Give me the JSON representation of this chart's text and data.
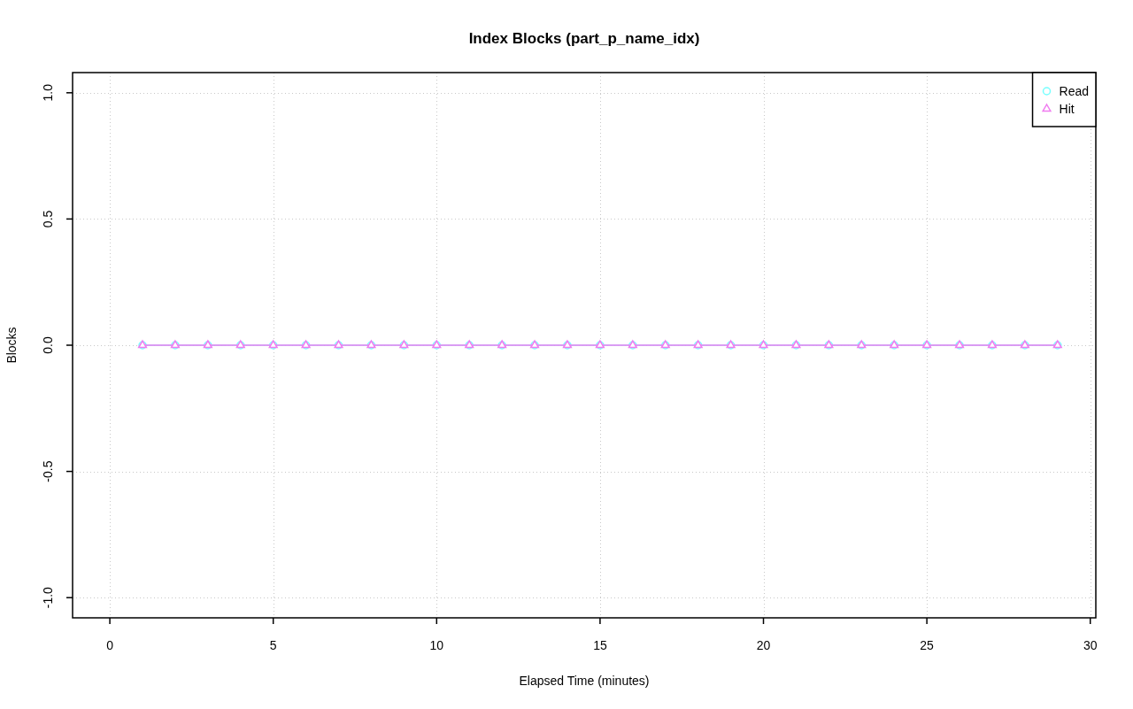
{
  "chart_data": {
    "type": "line",
    "title": "Index Blocks (part_p_name_idx)",
    "xlabel": "Elapsed Time (minutes)",
    "ylabel": "Blocks",
    "x": [
      1,
      2,
      3,
      4,
      5,
      6,
      7,
      8,
      9,
      10,
      11,
      12,
      13,
      14,
      15,
      16,
      17,
      18,
      19,
      20,
      21,
      22,
      23,
      24,
      25,
      26,
      27,
      28,
      29
    ],
    "series": [
      {
        "name": "Read",
        "color": "#77ffff",
        "marker": "circle",
        "values": [
          0,
          0,
          0,
          0,
          0,
          0,
          0,
          0,
          0,
          0,
          0,
          0,
          0,
          0,
          0,
          0,
          0,
          0,
          0,
          0,
          0,
          0,
          0,
          0,
          0,
          0,
          0,
          0,
          0
        ]
      },
      {
        "name": "Hit",
        "color": "#f07cf0",
        "marker": "triangle",
        "values": [
          0,
          0,
          0,
          0,
          0,
          0,
          0,
          0,
          0,
          0,
          0,
          0,
          0,
          0,
          0,
          0,
          0,
          0,
          0,
          0,
          0,
          0,
          0,
          0,
          0,
          0,
          0,
          0,
          0
        ]
      }
    ],
    "xlim": [
      -1.14,
      30.17
    ],
    "xticks": [
      0,
      5,
      10,
      15,
      20,
      25,
      30
    ],
    "ylim": [
      -1.08,
      1.08
    ],
    "yticks": [
      {
        "value": -1,
        "label": "-1.0"
      },
      {
        "value": -0.5,
        "label": "-0.5"
      },
      {
        "value": 0,
        "label": "0.0"
      },
      {
        "value": 0.5,
        "label": "0.5"
      },
      {
        "value": 1,
        "label": "1.0"
      }
    ],
    "grid": true,
    "legend": "top right",
    "line_style": "solid"
  }
}
